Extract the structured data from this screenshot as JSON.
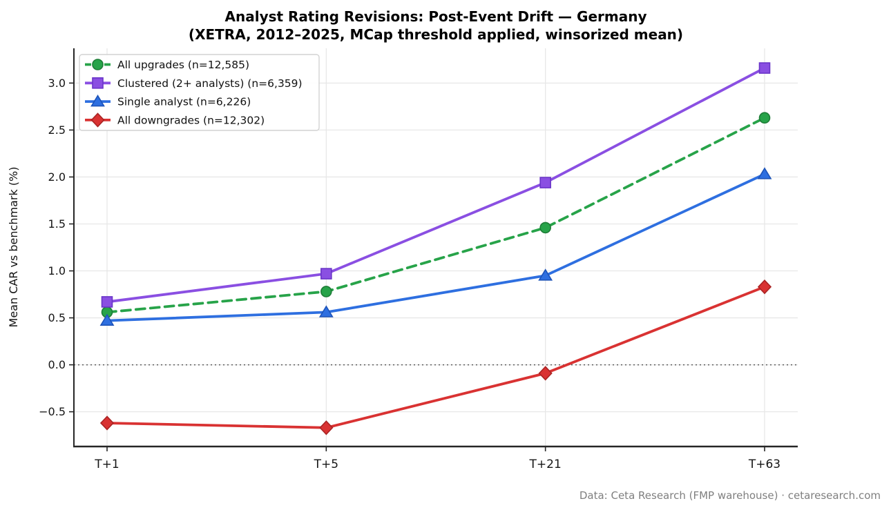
{
  "title": {
    "line1": "Analyst Rating Revisions: Post-Event Drift — Germany",
    "line2": "(XETRA, 2012–2025, MCap threshold applied, winsorized mean)"
  },
  "footer": {
    "source": "Data: Ceta Research (FMP warehouse) · cetaresearch.com"
  },
  "chart_data": {
    "type": "line",
    "title": "Analyst Rating Revisions: Post-Event Drift — Germany (XETRA, 2012–2025, MCap threshold applied, winsorized mean)",
    "x_categories": [
      "T+1",
      "T+5",
      "T+21",
      "T+63"
    ],
    "xlabel": "",
    "ylabel": "Mean CAR vs benchmark (%)",
    "ylim": [
      -0.87,
      3.37
    ],
    "yticks": [
      3.0,
      2.5,
      2.0,
      1.5,
      1.0,
      0.5,
      0.0,
      -0.5
    ],
    "grid": true,
    "zero_line": true,
    "legend_position": "upper left",
    "series": [
      {
        "name": "All upgrades (n=12,585)",
        "marker": "circle",
        "line_style": "dashed",
        "color": "#27a349",
        "edge": "#1d7c36",
        "values": [
          0.56,
          0.78,
          1.46,
          2.63
        ]
      },
      {
        "name": "Clustered (2+ analysts) (n=6,359)",
        "marker": "square",
        "line_style": "solid",
        "color": "#8a4fe2",
        "edge": "#6a35c8",
        "values": [
          0.67,
          0.97,
          1.94,
          3.16
        ]
      },
      {
        "name": "Single analyst (n=6,226)",
        "marker": "triangle",
        "line_style": "solid",
        "color": "#2e6fe0",
        "edge": "#1d53b8",
        "values": [
          0.47,
          0.56,
          0.95,
          2.03
        ]
      },
      {
        "name": "All downgrades (n=12,302)",
        "marker": "diamond",
        "line_style": "solid",
        "color": "#d93232",
        "edge": "#aa2424",
        "values": [
          -0.62,
          -0.67,
          -0.09,
          0.83
        ]
      }
    ]
  }
}
